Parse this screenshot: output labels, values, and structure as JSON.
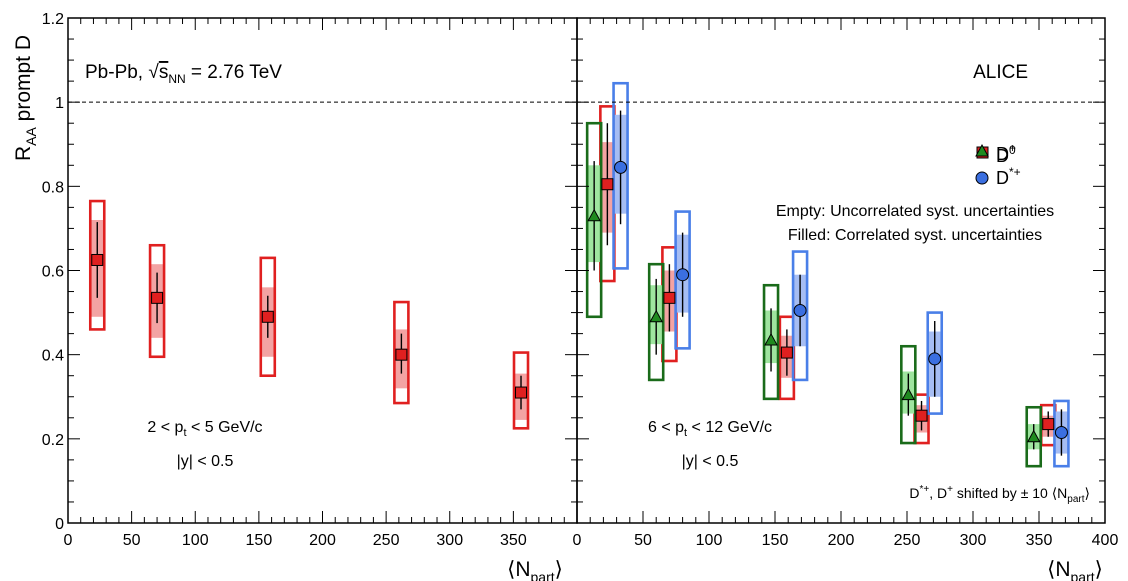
{
  "colors": {
    "d0": "#e02020",
    "dplus": "#1f8a1f",
    "dstar": "#3b6fe0",
    "d0_corr": "#f3a3a3",
    "dplus_corr": "#9fe59f",
    "dstar_corr": "#a6bdf3",
    "d0_unc": "#e02020",
    "dplus_unc": "#1a6b1a",
    "dstar_unc": "#4a7fe8"
  },
  "chart_data": [
    {
      "type": "scatter",
      "panel": "left",
      "ylabel": "R_AA prompt D",
      "xlabel": "⟨N_part⟩",
      "xlim": [
        0,
        400
      ],
      "ylim": [
        0,
        1.2
      ],
      "x_ticks": [
        "0",
        "50",
        "100",
        "150",
        "200",
        "250",
        "300",
        "350"
      ],
      "y_ticks": [
        "0",
        "0.2",
        "0.4",
        "0.6",
        "0.8",
        "1",
        "1.2"
      ],
      "reference_line": 1.0,
      "annotations": {
        "system": "Pb-Pb, √s_NN = 2.76 TeV",
        "pt_range": "2 < p_t < 5 GeV/c",
        "rapidity": "|y| < 0.5"
      },
      "series": [
        {
          "name": "D0",
          "marker": "square",
          "color": "d0",
          "points": [
            {
              "x": 23,
              "y": 0.625,
              "stat": [
                0.535,
                0.715
              ],
              "uncorr": [
                0.46,
                0.765
              ],
              "corr": [
                0.49,
                0.72
              ]
            },
            {
              "x": 70,
              "y": 0.535,
              "stat": [
                0.475,
                0.595
              ],
              "uncorr": [
                0.395,
                0.66
              ],
              "corr": [
                0.44,
                0.615
              ]
            },
            {
              "x": 157,
              "y": 0.49,
              "stat": [
                0.44,
                0.54
              ],
              "uncorr": [
                0.35,
                0.63
              ],
              "corr": [
                0.395,
                0.56
              ]
            },
            {
              "x": 262,
              "y": 0.4,
              "stat": [
                0.355,
                0.45
              ],
              "uncorr": [
                0.285,
                0.525
              ],
              "corr": [
                0.32,
                0.46
              ]
            },
            {
              "x": 356,
              "y": 0.31,
              "stat": [
                0.27,
                0.35
              ],
              "uncorr": [
                0.225,
                0.405
              ],
              "corr": [
                0.245,
                0.355
              ]
            }
          ]
        }
      ]
    },
    {
      "type": "scatter",
      "panel": "right",
      "xlabel": "⟨N_part⟩",
      "xlim": [
        0,
        400
      ],
      "ylim": [
        0,
        1.2
      ],
      "x_ticks": [
        "0",
        "50",
        "100",
        "150",
        "200",
        "250",
        "300",
        "350",
        "400"
      ],
      "reference_line": 1.0,
      "annotations": {
        "experiment": "ALICE",
        "pt_range": "6 < p_t < 12 GeV/c",
        "rapidity": "|y| < 0.5",
        "note_empty": "Empty: Uncorrelated syst. uncertainties",
        "note_filled": "Filled: Correlated syst. uncertainties",
        "shift_note": "D*+, D+ shifted by ± 10 ⟨N_part⟩"
      },
      "legend": {
        "placement": "top-right",
        "entries": [
          {
            "label": "D0",
            "sup": "0",
            "marker": "square",
            "color": "d0"
          },
          {
            "label": "D+",
            "sup": "+",
            "marker": "triangle",
            "color": "dplus"
          },
          {
            "label": "D*+",
            "sup": "*+",
            "marker": "circle",
            "color": "dstar"
          }
        ]
      },
      "series": [
        {
          "name": "D0",
          "marker": "square",
          "color": "d0",
          "points": [
            {
              "x": 23,
              "y": 0.805,
              "stat": [
                0.66,
                0.95
              ],
              "uncorr": [
                0.575,
                0.99
              ],
              "corr": [
                0.69,
                0.905
              ]
            },
            {
              "x": 70,
              "y": 0.535,
              "stat": [
                0.455,
                0.615
              ],
              "uncorr": [
                0.385,
                0.655
              ],
              "corr": [
                0.455,
                0.6
              ]
            },
            {
              "x": 159,
              "y": 0.405,
              "stat": [
                0.35,
                0.46
              ],
              "uncorr": [
                0.295,
                0.49
              ],
              "corr": [
                0.345,
                0.445
              ]
            },
            {
              "x": 261,
              "y": 0.255,
              "stat": [
                0.22,
                0.29
              ],
              "uncorr": [
                0.19,
                0.305
              ],
              "corr": [
                0.215,
                0.28
              ]
            },
            {
              "x": 357,
              "y": 0.235,
              "stat": [
                0.205,
                0.265
              ],
              "uncorr": [
                0.185,
                0.28
              ],
              "corr": [
                0.205,
                0.255
              ]
            }
          ]
        },
        {
          "name": "D+",
          "marker": "triangle",
          "color": "dplus",
          "points": [
            {
              "x": 13,
              "y": 0.73,
              "stat": [
                0.6,
                0.86
              ],
              "uncorr": [
                0.49,
                0.95
              ],
              "corr": [
                0.62,
                0.85
              ]
            },
            {
              "x": 60,
              "y": 0.49,
              "stat": [
                0.4,
                0.58
              ],
              "uncorr": [
                0.34,
                0.615
              ],
              "corr": [
                0.425,
                0.565
              ]
            },
            {
              "x": 147,
              "y": 0.435,
              "stat": [
                0.36,
                0.51
              ],
              "uncorr": [
                0.295,
                0.565
              ],
              "corr": [
                0.38,
                0.505
              ]
            },
            {
              "x": 251,
              "y": 0.305,
              "stat": [
                0.255,
                0.355
              ],
              "uncorr": [
                0.19,
                0.42
              ],
              "corr": [
                0.26,
                0.36
              ]
            },
            {
              "x": 346,
              "y": 0.205,
              "stat": [
                0.175,
                0.235
              ],
              "uncorr": [
                0.135,
                0.275
              ],
              "corr": [
                0.175,
                0.235
              ]
            }
          ]
        },
        {
          "name": "D*+",
          "marker": "circle",
          "color": "dstar",
          "points": [
            {
              "x": 33,
              "y": 0.845,
              "stat": [
                0.71,
                0.98
              ],
              "uncorr": [
                0.605,
                1.045
              ],
              "corr": [
                0.735,
                0.97
              ]
            },
            {
              "x": 80,
              "y": 0.59,
              "stat": [
                0.49,
                0.69
              ],
              "uncorr": [
                0.415,
                0.74
              ],
              "corr": [
                0.5,
                0.685
              ]
            },
            {
              "x": 169,
              "y": 0.505,
              "stat": [
                0.42,
                0.59
              ],
              "uncorr": [
                0.34,
                0.645
              ],
              "corr": [
                0.42,
                0.59
              ]
            },
            {
              "x": 271,
              "y": 0.39,
              "stat": [
                0.3,
                0.48
              ],
              "uncorr": [
                0.26,
                0.5
              ],
              "corr": [
                0.3,
                0.455
              ]
            },
            {
              "x": 367,
              "y": 0.215,
              "stat": [
                0.16,
                0.27
              ],
              "uncorr": [
                0.135,
                0.29
              ],
              "corr": [
                0.165,
                0.265
              ]
            }
          ]
        }
      ]
    }
  ]
}
